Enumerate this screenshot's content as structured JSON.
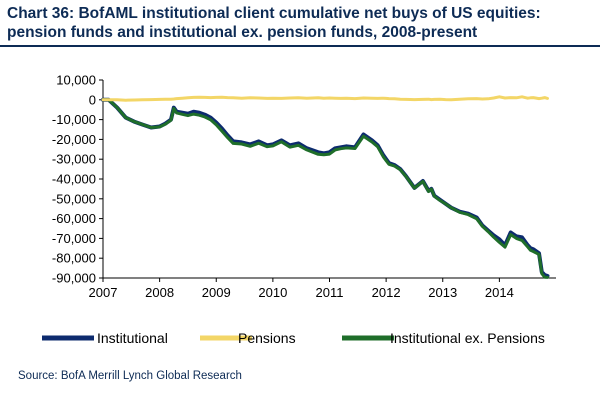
{
  "title_line1": "Chart 36: BofAML institutional client cumulative net buys of US equities:",
  "title_line2": "pension funds and institutional ex. pension funds, 2008-present",
  "source": "Source: BofA Merrill Lynch Global Research",
  "chart_data": {
    "type": "line",
    "xlabel": "",
    "ylabel": "",
    "xlim": [
      2007.0,
      2015.0
    ],
    "ylim": [
      -90000,
      10000
    ],
    "x_ticks": [
      2007,
      2008,
      2009,
      2010,
      2011,
      2012,
      2013,
      2014
    ],
    "x_tick_labels": [
      "2007",
      "2008",
      "2009",
      "2010",
      "2011",
      "2012",
      "2013",
      "2014"
    ],
    "y_ticks": [
      10000,
      0,
      -10000,
      -20000,
      -30000,
      -40000,
      -50000,
      -60000,
      -70000,
      -80000,
      -90000
    ],
    "y_tick_labels": [
      "10,000",
      "0",
      "-10,000",
      "-20,000",
      "-30,000",
      "-40,000",
      "-50,000",
      "-60,000",
      "-70,000",
      "-80,000",
      "-90,000"
    ],
    "grid": false,
    "legend_position": "bottom",
    "x": [
      2007.0,
      2007.1,
      2007.25,
      2007.4,
      2007.55,
      2007.7,
      2007.85,
      2008.0,
      2008.1,
      2008.2,
      2008.25,
      2008.3,
      2008.4,
      2008.5,
      2008.6,
      2008.7,
      2008.8,
      2008.9,
      2009.0,
      2009.1,
      2009.2,
      2009.3,
      2009.45,
      2009.6,
      2009.75,
      2009.9,
      2010.0,
      2010.15,
      2010.3,
      2010.45,
      2010.6,
      2010.7,
      2010.8,
      2010.9,
      2011.0,
      2011.1,
      2011.2,
      2011.3,
      2011.45,
      2011.6,
      2011.75,
      2011.85,
      2011.95,
      2012.0,
      2012.05,
      2012.15,
      2012.25,
      2012.35,
      2012.5,
      2012.65,
      2012.75,
      2012.8,
      2012.85,
      2012.95,
      2013.05,
      2013.15,
      2013.3,
      2013.45,
      2013.6,
      2013.7,
      2013.8,
      2013.9,
      2014.0,
      2014.1,
      2014.2,
      2014.3,
      2014.4,
      2014.5,
      2014.55,
      2014.6,
      2014.7,
      2014.75,
      2014.8,
      2014.85
    ],
    "series": [
      {
        "name": "Institutional",
        "color": "#0d2b6e",
        "values": [
          0,
          0,
          -4000,
          -9000,
          -11000,
          -12500,
          -14000,
          -13500,
          -12000,
          -10000,
          -4000,
          -6000,
          -6500,
          -7000,
          -6000,
          -6500,
          -7500,
          -9000,
          -11500,
          -14500,
          -18000,
          -21000,
          -21500,
          -22500,
          -21000,
          -23000,
          -22500,
          -20500,
          -23000,
          -22000,
          -24500,
          -25500,
          -26500,
          -27000,
          -26500,
          -24500,
          -24000,
          -23500,
          -24000,
          -17500,
          -20500,
          -23000,
          -28000,
          -30000,
          -32000,
          -33000,
          -35000,
          -38500,
          -44500,
          -41000,
          -46000,
          -45000,
          -48500,
          -50500,
          -52500,
          -54500,
          -56500,
          -57500,
          -59500,
          -63500,
          -66000,
          -68500,
          -70500,
          -73500,
          -67000,
          -69000,
          -69500,
          -73500,
          -75000,
          -75500,
          -77500,
          -87000,
          -88500,
          -89000
        ]
      },
      {
        "name": "Pensions",
        "color": "#f3d667",
        "values": [
          0,
          0,
          0,
          -200,
          -100,
          0,
          100,
          200,
          300,
          300,
          400,
          600,
          800,
          1000,
          1200,
          1300,
          1200,
          1100,
          1200,
          1300,
          1100,
          1000,
          800,
          1000,
          900,
          700,
          800,
          700,
          900,
          1000,
          800,
          900,
          1000,
          800,
          900,
          800,
          700,
          800,
          600,
          900,
          800,
          700,
          800,
          700,
          600,
          500,
          300,
          200,
          100,
          200,
          300,
          100,
          200,
          300,
          100,
          0,
          300,
          500,
          600,
          400,
          500,
          900,
          1500,
          900,
          1100,
          1000,
          1500,
          800,
          1000,
          1100,
          600,
          800,
          1100,
          700
        ]
      },
      {
        "name": "Institutional ex. Pensions",
        "color": "#1f6e2a",
        "values": [
          0,
          0,
          -4000,
          -9000,
          -11000,
          -12500,
          -14000,
          -13700,
          -12300,
          -10300,
          -4400,
          -6600,
          -7300,
          -8000,
          -7200,
          -7800,
          -8700,
          -10100,
          -12700,
          -15800,
          -19100,
          -22000,
          -22300,
          -23500,
          -21900,
          -23700,
          -23300,
          -21200,
          -23900,
          -23000,
          -25300,
          -26400,
          -27500,
          -27800,
          -27400,
          -25300,
          -24700,
          -24300,
          -24600,
          -18400,
          -21300,
          -23700,
          -28800,
          -30700,
          -32600,
          -33500,
          -35300,
          -38700,
          -44600,
          -41200,
          -46300,
          -45100,
          -48700,
          -50800,
          -52600,
          -54500,
          -56800,
          -58000,
          -60100,
          -63900,
          -66500,
          -69400,
          -72000,
          -74400,
          -68100,
          -70000,
          -71000,
          -74300,
          -76000,
          -76600,
          -78100,
          -87800,
          -89600,
          -89700
        ]
      }
    ]
  }
}
